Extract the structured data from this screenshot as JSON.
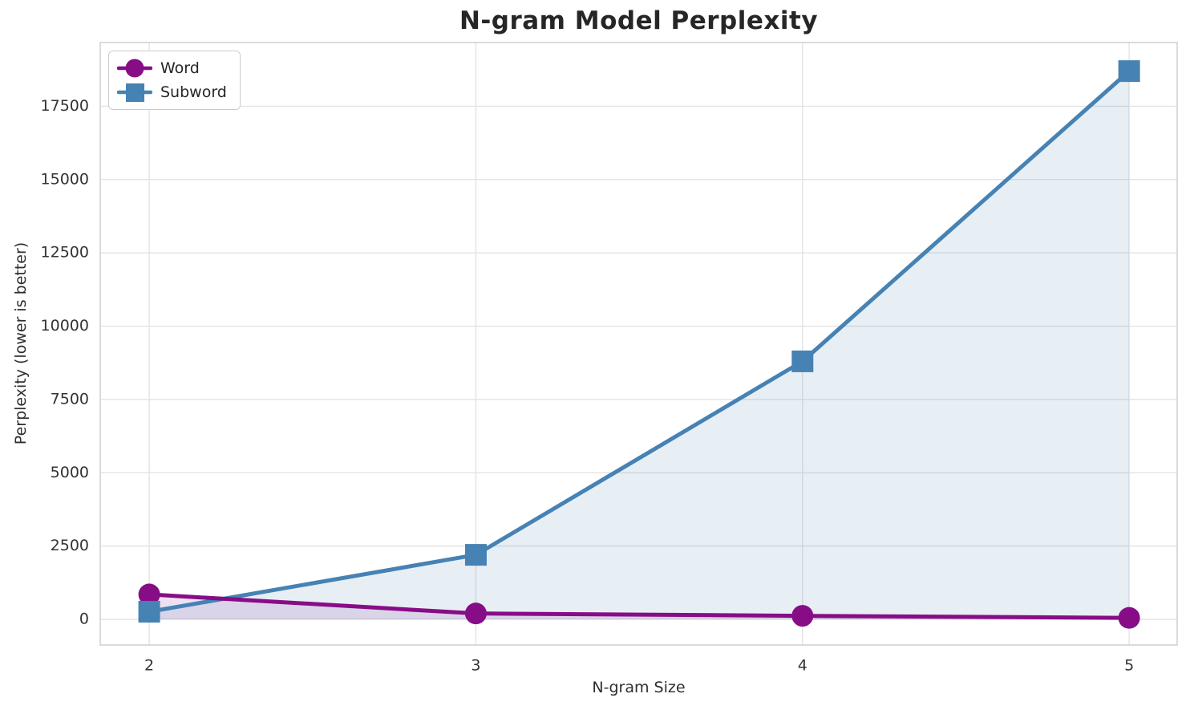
{
  "chart_data": {
    "type": "line",
    "title": "N-gram Model Perplexity",
    "xlabel": "N-gram Size",
    "ylabel": "Perplexity (lower is better)",
    "x": [
      2,
      3,
      4,
      5
    ],
    "x_tick_labels": [
      "2",
      "3",
      "4",
      "5"
    ],
    "y_tick_values": [
      0,
      2500,
      5000,
      7500,
      10000,
      12500,
      15000,
      17500
    ],
    "y_tick_labels": [
      "0",
      "2500",
      "5000",
      "7500",
      "10000",
      "12500",
      "15000",
      "17500"
    ],
    "xlim": [
      1.85,
      5.147
    ],
    "ylim": [
      -876,
      19675
    ],
    "grid": true,
    "legend_position": "upper left",
    "fill_to_zero": true,
    "series": [
      {
        "name": "Word",
        "marker": "circle",
        "color": "#870d87",
        "fill_color": "rgba(135, 13, 135, 0.13)",
        "values": [
          850,
          200,
          120,
          50
        ]
      },
      {
        "name": "Subword",
        "marker": "square",
        "color": "#4682b4",
        "fill_color": "rgba(70, 130, 180, 0.13)",
        "values": [
          260,
          2200,
          8800,
          18700
        ]
      }
    ],
    "styles": {
      "grid_color": "#e3e3e3",
      "spine_color": "#d2d2d2",
      "background": "#ffffff",
      "title_color": "#262626",
      "tick_color": "#333333",
      "line_width": 5,
      "marker_size": 27
    }
  }
}
